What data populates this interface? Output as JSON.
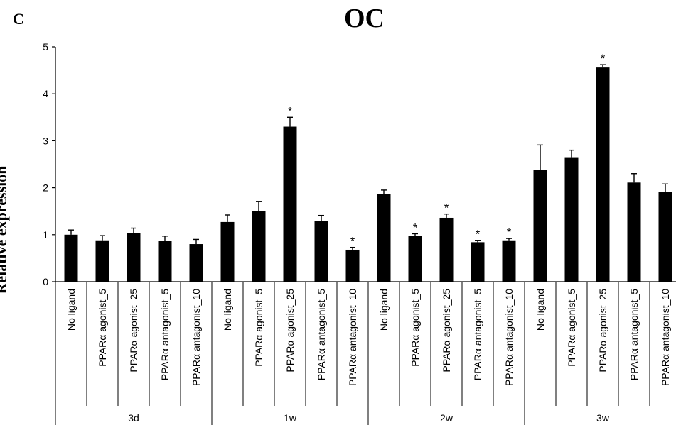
{
  "panel_letter": "C",
  "chart_data": {
    "type": "bar",
    "title": "OC",
    "ylabel": "Relative expression",
    "xlabel": "",
    "ylim": [
      0,
      5
    ],
    "yticks": [
      0,
      1,
      2,
      3,
      4,
      5
    ],
    "grid": false,
    "legend": "none",
    "bar_color": "#000000",
    "groups": [
      {
        "name": "3d",
        "categories": [
          "No ligand",
          "PPARα agonist_5",
          "PPARα agonist_25",
          "PPARα antagonist_5",
          "PPARα antagonist_10"
        ],
        "values": [
          1.0,
          0.88,
          1.03,
          0.87,
          0.8
        ],
        "errors": [
          0.1,
          0.1,
          0.11,
          0.1,
          0.1
        ],
        "significant": [
          false,
          false,
          false,
          false,
          false
        ]
      },
      {
        "name": "1w",
        "categories": [
          "No ligand",
          "PPARα agonist_5",
          "PPARα agonist_25",
          "PPARα antagonist_5",
          "PPARα antagonist_10"
        ],
        "values": [
          1.27,
          1.51,
          3.3,
          1.29,
          0.68
        ],
        "errors": [
          0.15,
          0.2,
          0.2,
          0.12,
          0.05
        ],
        "significant": [
          false,
          false,
          true,
          false,
          true
        ]
      },
      {
        "name": "2w",
        "categories": [
          "No ligand",
          "PPARα agonist_5",
          "PPARα agonist_25",
          "PPARα antagonist_5",
          "PPARα antagonist_10"
        ],
        "values": [
          1.87,
          0.98,
          1.36,
          0.84,
          0.88
        ],
        "errors": [
          0.08,
          0.04,
          0.08,
          0.04,
          0.04
        ],
        "significant": [
          false,
          true,
          true,
          true,
          true
        ]
      },
      {
        "name": "3w",
        "categories": [
          "No ligand",
          "PPARα agonist_5",
          "PPARα agonist_25",
          "PPARα antagonist_5",
          "PPARα antagonist_10"
        ],
        "values": [
          2.38,
          2.65,
          4.56,
          2.11,
          1.91
        ],
        "errors": [
          0.53,
          0.15,
          0.06,
          0.19,
          0.17
        ],
        "significant": [
          false,
          false,
          true,
          false,
          false
        ]
      }
    ],
    "significance_marker": "*"
  }
}
